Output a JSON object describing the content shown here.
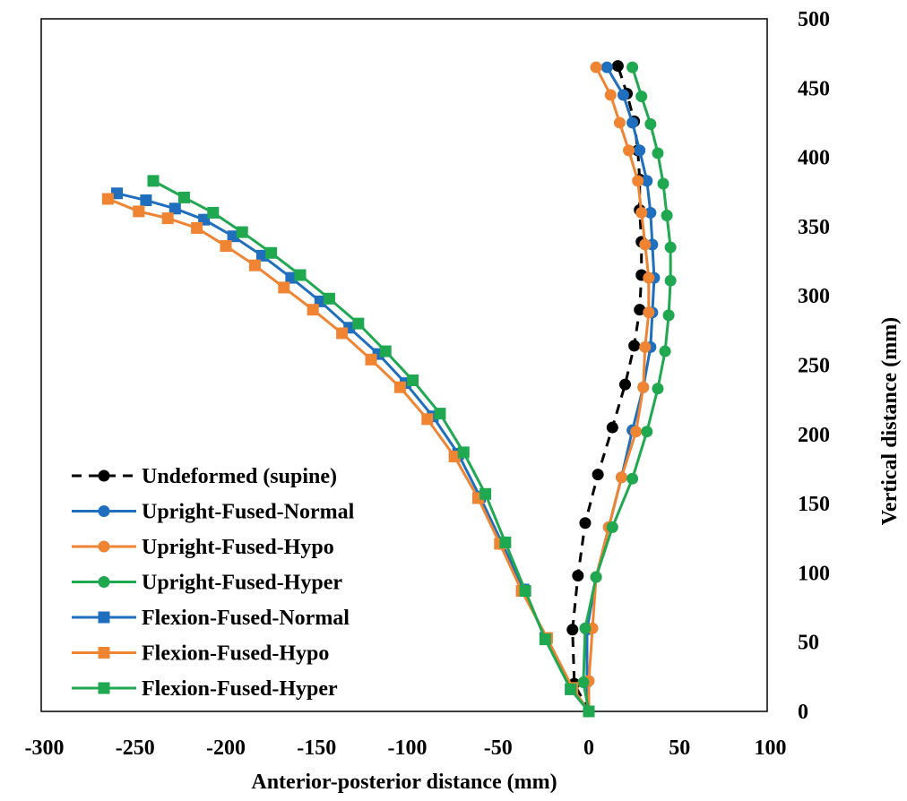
{
  "chart_data": {
    "type": "scatter",
    "xlabel": "Anterior-posterior distance (mm)",
    "ylabel": "Vertical distance (mm)",
    "xlim": [
      -300,
      100
    ],
    "ylim": [
      0,
      500
    ],
    "x_ticks": [
      "-300",
      "-250",
      "-200",
      "-150",
      "-100",
      "-50",
      "0",
      "50",
      "100"
    ],
    "y_ticks": [
      "0",
      "50",
      "100",
      "150",
      "200",
      "250",
      "300",
      "350",
      "400",
      "450",
      "500"
    ],
    "x_tick_values": [
      -300,
      -250,
      -200,
      -150,
      -100,
      -50,
      0,
      50,
      100
    ],
    "y_tick_values": [
      0,
      50,
      100,
      150,
      200,
      250,
      300,
      350,
      400,
      450,
      500
    ],
    "y_axis_side": "right",
    "grid": false,
    "legend_position": "bottom-left",
    "series": [
      {
        "name": "Undeformed (supine)",
        "color": "#000000",
        "marker": "circle",
        "dashed": true,
        "points": [
          [
            0,
            0
          ],
          [
            -8,
            20
          ],
          [
            -9,
            59
          ],
          [
            -6,
            98
          ],
          [
            -2,
            136
          ],
          [
            5,
            171
          ],
          [
            13,
            205
          ],
          [
            20,
            236
          ],
          [
            25,
            264
          ],
          [
            28,
            290
          ],
          [
            29,
            315
          ],
          [
            29,
            339
          ],
          [
            28,
            362
          ],
          [
            28,
            384
          ],
          [
            27,
            405
          ],
          [
            25,
            426
          ],
          [
            21,
            446
          ],
          [
            16,
            466
          ]
        ]
      },
      {
        "name": "Upright-Fused-Normal",
        "color": "#1f6fbe",
        "marker": "circle",
        "dashed": false,
        "points": [
          [
            0,
            0
          ],
          [
            -1,
            21
          ],
          [
            -1,
            59
          ],
          [
            4,
            97
          ],
          [
            11,
            133
          ],
          [
            18,
            169
          ],
          [
            24,
            203
          ],
          [
            30,
            234
          ],
          [
            34,
            263
          ],
          [
            35,
            288
          ],
          [
            36,
            313
          ],
          [
            35,
            337
          ],
          [
            34,
            360
          ],
          [
            32,
            383
          ],
          [
            28,
            405
          ],
          [
            24,
            425
          ],
          [
            19,
            445
          ],
          [
            10,
            465
          ]
        ]
      },
      {
        "name": "Upright-Fused-Hypo",
        "color": "#ef8433",
        "marker": "circle",
        "dashed": false,
        "points": [
          [
            0,
            0
          ],
          [
            0,
            22
          ],
          [
            2,
            60
          ],
          [
            4,
            97
          ],
          [
            11,
            133
          ],
          [
            18,
            169
          ],
          [
            26,
            202
          ],
          [
            30,
            234
          ],
          [
            31,
            263
          ],
          [
            33,
            288
          ],
          [
            33,
            313
          ],
          [
            31,
            337
          ],
          [
            29,
            360
          ],
          [
            27,
            383
          ],
          [
            22,
            405
          ],
          [
            17,
            425
          ],
          [
            12,
            445
          ],
          [
            4,
            465
          ]
        ]
      },
      {
        "name": "Upright-Fused-Hyper",
        "color": "#1fa84f",
        "marker": "circle",
        "dashed": false,
        "points": [
          [
            0,
            0
          ],
          [
            -3,
            21
          ],
          [
            -2,
            60
          ],
          [
            4,
            97
          ],
          [
            13,
            133
          ],
          [
            24,
            168
          ],
          [
            32,
            202
          ],
          [
            38,
            233
          ],
          [
            42,
            260
          ],
          [
            44,
            286
          ],
          [
            45,
            311
          ],
          [
            45,
            335
          ],
          [
            43,
            358
          ],
          [
            41,
            381
          ],
          [
            38,
            403
          ],
          [
            34,
            424
          ],
          [
            29,
            444
          ],
          [
            24,
            465
          ]
        ]
      },
      {
        "name": "Flexion-Fused-Normal",
        "color": "#1f6fbe",
        "marker": "square",
        "dashed": false,
        "points": [
          [
            0,
            0
          ],
          [
            -10,
            16
          ],
          [
            -24,
            53
          ],
          [
            -36,
            88
          ],
          [
            -48,
            122
          ],
          [
            -60,
            155
          ],
          [
            -72,
            186
          ],
          [
            -86,
            213
          ],
          [
            -101,
            237
          ],
          [
            -116,
            258
          ],
          [
            -132,
            277
          ],
          [
            -148,
            296
          ],
          [
            -164,
            313
          ],
          [
            -180,
            329
          ],
          [
            -196,
            343
          ],
          [
            -212,
            355
          ],
          [
            -228,
            363
          ],
          [
            -244,
            369
          ],
          [
            -260,
            374
          ]
        ]
      },
      {
        "name": "Flexion-Fused-Hypo",
        "color": "#ef8433",
        "marker": "square",
        "dashed": false,
        "points": [
          [
            0,
            0
          ],
          [
            -9,
            17
          ],
          [
            -23,
            53
          ],
          [
            -37,
            87
          ],
          [
            -49,
            121
          ],
          [
            -61,
            154
          ],
          [
            -74,
            184
          ],
          [
            -89,
            211
          ],
          [
            -104,
            234
          ],
          [
            -120,
            254
          ],
          [
            -136,
            273
          ],
          [
            -152,
            290
          ],
          [
            -168,
            306
          ],
          [
            -184,
            322
          ],
          [
            -200,
            336
          ],
          [
            -216,
            349
          ],
          [
            -232,
            356
          ],
          [
            -248,
            361
          ],
          [
            -265,
            370
          ]
        ]
      },
      {
        "name": "Flexion-Fused-Hyper",
        "color": "#1fa84f",
        "marker": "square",
        "dashed": false,
        "points": [
          [
            0,
            0
          ],
          [
            -10,
            16
          ],
          [
            -24,
            52
          ],
          [
            -35,
            87
          ],
          [
            -46,
            122
          ],
          [
            -57,
            157
          ],
          [
            -69,
            187
          ],
          [
            -82,
            215
          ],
          [
            -97,
            239
          ],
          [
            -112,
            260
          ],
          [
            -127,
            280
          ],
          [
            -143,
            298
          ],
          [
            -159,
            315
          ],
          [
            -175,
            331
          ],
          [
            -191,
            346
          ],
          [
            -207,
            360
          ],
          [
            -223,
            371
          ],
          [
            -240,
            383
          ]
        ]
      }
    ]
  }
}
